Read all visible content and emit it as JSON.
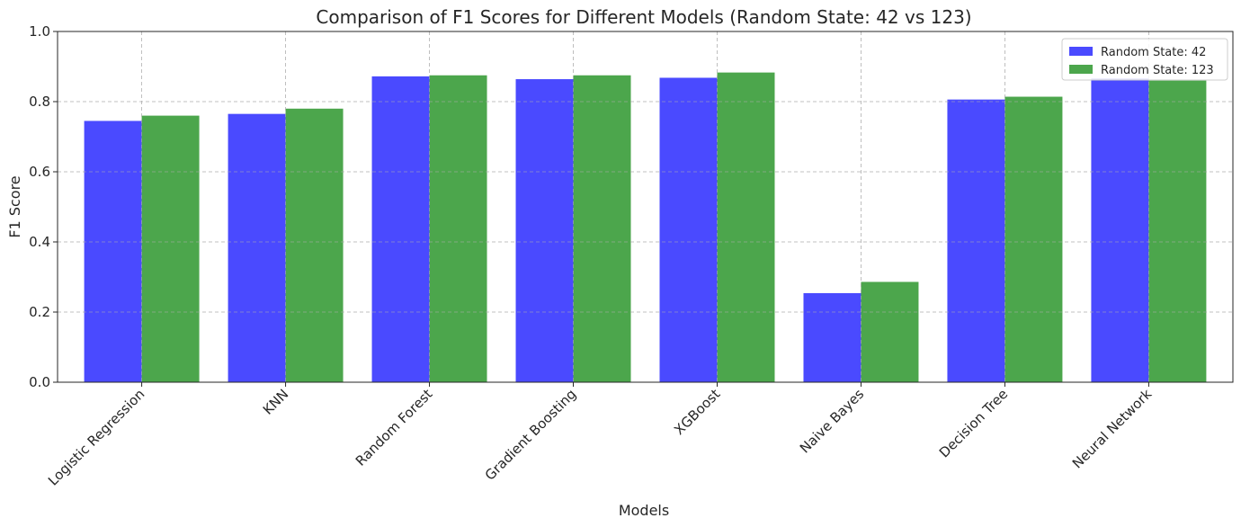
{
  "chart_data": {
    "type": "bar",
    "title": "Comparison of F1 Scores for Different Models (Random State: 42 vs 123)",
    "xlabel": "Models",
    "ylabel": "F1 Score",
    "ylim": [
      0,
      1.0
    ],
    "yticks": [
      "0.0",
      "0.2",
      "0.4",
      "0.6",
      "0.8",
      "1.0"
    ],
    "grid": true,
    "legend_position": "top-right",
    "categories": [
      "Logistic Regression",
      "KNN",
      "Random Forest",
      "Gradient Boosting",
      "XGBoost",
      "Naive Bayes",
      "Decision Tree",
      "Neural Network"
    ],
    "series": [
      {
        "name": "Random State: 42",
        "color": "#4a4aff",
        "values": [
          0.745,
          0.765,
          0.872,
          0.864,
          0.868,
          0.254,
          0.806,
          0.866
        ]
      },
      {
        "name": "Random State: 123",
        "color": "#4ca64c",
        "values": [
          0.76,
          0.78,
          0.875,
          0.875,
          0.883,
          0.286,
          0.814,
          0.86
        ]
      }
    ]
  }
}
